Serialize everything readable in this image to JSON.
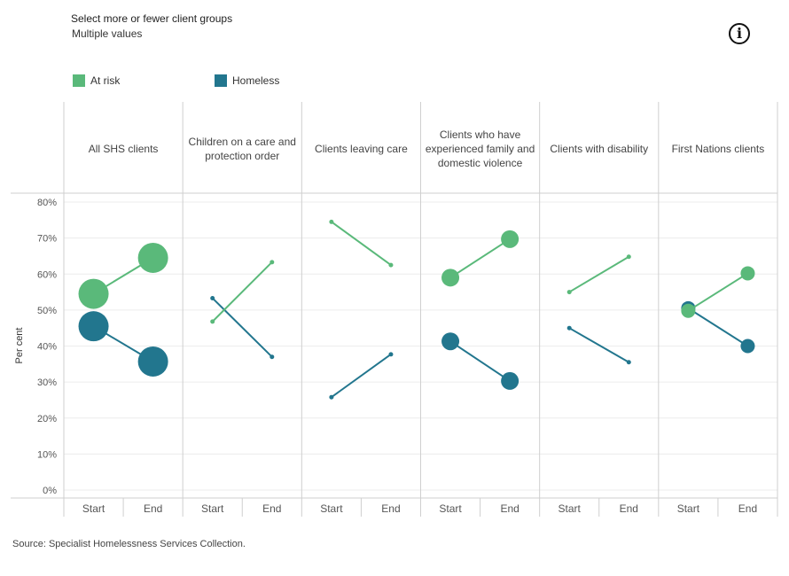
{
  "filter": {
    "title": "Select more or fewer client groups",
    "value": "Multiple values"
  },
  "info_icon": "info-icon",
  "legend": [
    {
      "name": "At risk",
      "color": "#5ab97a"
    },
    {
      "name": "Homeless",
      "color": "#22768e"
    }
  ],
  "source": "Source: Specialist Homelessness Services Collection.",
  "chart_data": {
    "type": "line",
    "ylabel": "Per cent",
    "ylim": [
      0,
      80
    ],
    "yticks": [
      "0%",
      "10%",
      "20%",
      "30%",
      "40%",
      "50%",
      "60%",
      "70%",
      "80%"
    ],
    "x": [
      "Start",
      "End"
    ],
    "panels": [
      {
        "name": "All SHS clients",
        "title_lines": [
          "All SHS clients"
        ],
        "at_risk": [
          54.5,
          64.5
        ],
        "homeless": [
          45.5,
          35.7
        ],
        "size": "large"
      },
      {
        "name": "Children on a care and protection order",
        "title_lines": [
          "Children on a care and",
          "protection order"
        ],
        "at_risk": [
          46.8,
          63.3
        ],
        "homeless": [
          53.3,
          37.0
        ],
        "size": "tiny"
      },
      {
        "name": "Clients leaving care",
        "title_lines": [
          "Clients leaving care"
        ],
        "at_risk": [
          74.5,
          62.5
        ],
        "homeless": [
          25.8,
          37.7
        ],
        "size": "tiny"
      },
      {
        "name": "Clients who have experienced family and domestic violence",
        "title_lines": [
          "Clients who have",
          "experienced family and",
          "domestic violence"
        ],
        "at_risk": [
          59.0,
          69.7
        ],
        "homeless": [
          41.3,
          30.3
        ],
        "size": "medium"
      },
      {
        "name": "Clients with disability",
        "title_lines": [
          "Clients with disability"
        ],
        "at_risk": [
          55.0,
          64.8
        ],
        "homeless": [
          45.0,
          35.5
        ],
        "size": "tiny"
      },
      {
        "name": "First Nations clients",
        "title_lines": [
          "First Nations clients"
        ],
        "at_risk": [
          49.8,
          60.2
        ],
        "homeless": [
          50.5,
          40.0
        ],
        "size": "small"
      }
    ],
    "colors": {
      "at_risk": "#5ab97a",
      "homeless": "#22768e",
      "grid": "#ececec",
      "border": "#cfcfcf"
    }
  }
}
